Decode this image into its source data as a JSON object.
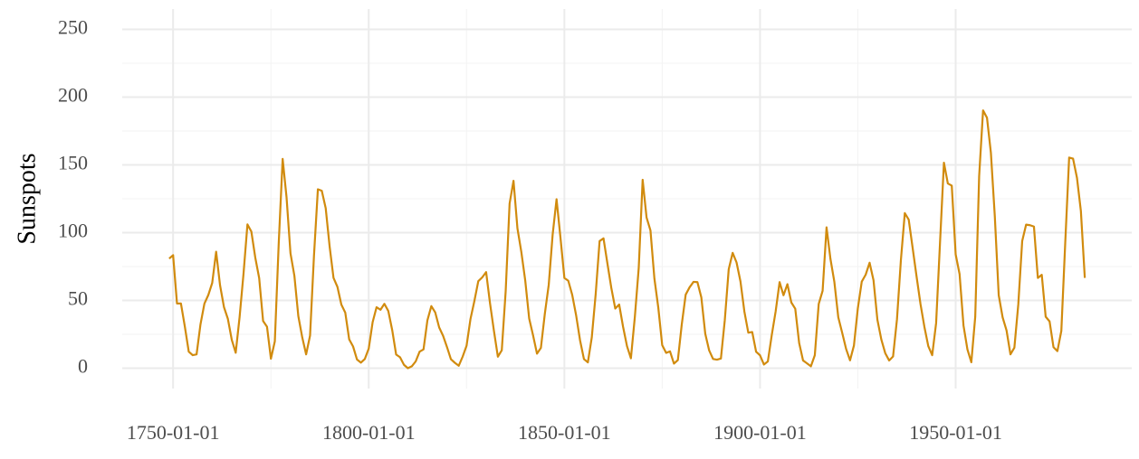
{
  "chart_data": {
    "type": "line",
    "y_label": "Sunspots",
    "x": [
      "1749-01-01",
      "1750-01-01",
      "1751-01-01",
      "1752-01-01",
      "1753-01-01",
      "1754-01-01",
      "1755-01-01",
      "1756-01-01",
      "1757-01-01",
      "1758-01-01",
      "1759-01-01",
      "1760-01-01",
      "1761-01-01",
      "1762-01-01",
      "1763-01-01",
      "1764-01-01",
      "1765-01-01",
      "1766-01-01",
      "1767-01-01",
      "1768-01-01",
      "1769-01-01",
      "1770-01-01",
      "1771-01-01",
      "1772-01-01",
      "1773-01-01",
      "1774-01-01",
      "1775-01-01",
      "1776-01-01",
      "1777-01-01",
      "1778-01-01",
      "1779-01-01",
      "1780-01-01",
      "1781-01-01",
      "1782-01-01",
      "1783-01-01",
      "1784-01-01",
      "1785-01-01",
      "1786-01-01",
      "1787-01-01",
      "1788-01-01",
      "1789-01-01",
      "1790-01-01",
      "1791-01-01",
      "1792-01-01",
      "1793-01-01",
      "1794-01-01",
      "1795-01-01",
      "1796-01-01",
      "1797-01-01",
      "1798-01-01",
      "1799-01-01",
      "1800-01-01",
      "1801-01-01",
      "1802-01-01",
      "1803-01-01",
      "1804-01-01",
      "1805-01-01",
      "1806-01-01",
      "1807-01-01",
      "1808-01-01",
      "1809-01-01",
      "1810-01-01",
      "1811-01-01",
      "1812-01-01",
      "1813-01-01",
      "1814-01-01",
      "1815-01-01",
      "1816-01-01",
      "1817-01-01",
      "1818-01-01",
      "1819-01-01",
      "1820-01-01",
      "1821-01-01",
      "1822-01-01",
      "1823-01-01",
      "1824-01-01",
      "1825-01-01",
      "1826-01-01",
      "1827-01-01",
      "1828-01-01",
      "1829-01-01",
      "1830-01-01",
      "1831-01-01",
      "1832-01-01",
      "1833-01-01",
      "1834-01-01",
      "1835-01-01",
      "1836-01-01",
      "1837-01-01",
      "1838-01-01",
      "1839-01-01",
      "1840-01-01",
      "1841-01-01",
      "1842-01-01",
      "1843-01-01",
      "1844-01-01",
      "1845-01-01",
      "1846-01-01",
      "1847-01-01",
      "1848-01-01",
      "1849-01-01",
      "1850-01-01",
      "1851-01-01",
      "1852-01-01",
      "1853-01-01",
      "1854-01-01",
      "1855-01-01",
      "1856-01-01",
      "1857-01-01",
      "1858-01-01",
      "1859-01-01",
      "1860-01-01",
      "1861-01-01",
      "1862-01-01",
      "1863-01-01",
      "1864-01-01",
      "1865-01-01",
      "1866-01-01",
      "1867-01-01",
      "1868-01-01",
      "1869-01-01",
      "1870-01-01",
      "1871-01-01",
      "1872-01-01",
      "1873-01-01",
      "1874-01-01",
      "1875-01-01",
      "1876-01-01",
      "1877-01-01",
      "1878-01-01",
      "1879-01-01",
      "1880-01-01",
      "1881-01-01",
      "1882-01-01",
      "1883-01-01",
      "1884-01-01",
      "1885-01-01",
      "1886-01-01",
      "1887-01-01",
      "1888-01-01",
      "1889-01-01",
      "1890-01-01",
      "1891-01-01",
      "1892-01-01",
      "1893-01-01",
      "1894-01-01",
      "1895-01-01",
      "1896-01-01",
      "1897-01-01",
      "1898-01-01",
      "1899-01-01",
      "1900-01-01",
      "1901-01-01",
      "1902-01-01",
      "1903-01-01",
      "1904-01-01",
      "1905-01-01",
      "1906-01-01",
      "1907-01-01",
      "1908-01-01",
      "1909-01-01",
      "1910-01-01",
      "1911-01-01",
      "1912-01-01",
      "1913-01-01",
      "1914-01-01",
      "1915-01-01",
      "1916-01-01",
      "1917-01-01",
      "1918-01-01",
      "1919-01-01",
      "1920-01-01",
      "1921-01-01",
      "1922-01-01",
      "1923-01-01",
      "1924-01-01",
      "1925-01-01",
      "1926-01-01",
      "1927-01-01",
      "1928-01-01",
      "1929-01-01",
      "1930-01-01",
      "1931-01-01",
      "1932-01-01",
      "1933-01-01",
      "1934-01-01",
      "1935-01-01",
      "1936-01-01",
      "1937-01-01",
      "1938-01-01",
      "1939-01-01",
      "1940-01-01",
      "1941-01-01",
      "1942-01-01",
      "1943-01-01",
      "1944-01-01",
      "1945-01-01",
      "1946-01-01",
      "1947-01-01",
      "1948-01-01",
      "1949-01-01",
      "1950-01-01",
      "1951-01-01",
      "1952-01-01",
      "1953-01-01",
      "1954-01-01",
      "1955-01-01",
      "1956-01-01",
      "1957-01-01",
      "1958-01-01",
      "1959-01-01",
      "1960-01-01",
      "1961-01-01",
      "1962-01-01",
      "1963-01-01",
      "1964-01-01",
      "1965-01-01",
      "1966-01-01",
      "1967-01-01",
      "1968-01-01",
      "1969-01-01",
      "1970-01-01",
      "1971-01-01",
      "1972-01-01",
      "1973-01-01",
      "1974-01-01",
      "1975-01-01",
      "1976-01-01",
      "1977-01-01",
      "1978-01-01",
      "1979-01-01",
      "1980-01-01",
      "1981-01-01",
      "1982-01-01",
      "1983-01-01"
    ],
    "series": [
      {
        "name": "Sunspots",
        "color": "#d18b0e",
        "values": [
          80.9,
          83.4,
          47.7,
          47.8,
          30.7,
          12.2,
          9.6,
          10.2,
          32.4,
          47.6,
          54.0,
          62.9,
          85.9,
          61.2,
          45.1,
          36.4,
          20.9,
          11.4,
          37.8,
          69.8,
          106.1,
          100.8,
          81.6,
          66.5,
          34.8,
          30.6,
          7.0,
          19.8,
          92.5,
          154.4,
          125.9,
          84.8,
          68.1,
          38.5,
          22.8,
          10.2,
          24.1,
          82.9,
          132.0,
          130.9,
          118.1,
          89.9,
          66.6,
          60.0,
          46.9,
          41.0,
          21.3,
          16.0,
          6.4,
          4.1,
          6.8,
          14.5,
          34.0,
          45.0,
          43.1,
          47.5,
          42.2,
          28.1,
          10.1,
          8.1,
          2.5,
          0.0,
          1.4,
          5.0,
          12.2,
          13.9,
          35.4,
          45.8,
          41.1,
          30.1,
          23.9,
          15.6,
          6.6,
          4.0,
          1.8,
          8.5,
          16.6,
          36.3,
          49.6,
          64.2,
          67.0,
          70.9,
          47.8,
          27.5,
          8.5,
          13.2,
          56.9,
          121.5,
          138.3,
          103.2,
          85.7,
          64.6,
          36.7,
          24.2,
          10.7,
          15.0,
          40.1,
          61.5,
          98.5,
          124.7,
          96.3,
          66.6,
          64.5,
          54.1,
          39.0,
          20.6,
          6.7,
          4.3,
          22.7,
          54.8,
          93.8,
          95.8,
          77.2,
          59.1,
          44.0,
          47.0,
          30.5,
          16.3,
          7.3,
          37.6,
          74.0,
          139.0,
          111.2,
          101.6,
          66.2,
          44.7,
          17.0,
          11.3,
          12.4,
          3.4,
          6.0,
          32.3,
          54.3,
          59.7,
          63.7,
          63.5,
          52.2,
          25.4,
          13.1,
          6.8,
          6.3,
          7.1,
          35.6,
          73.0,
          85.1,
          78.0,
          64.0,
          41.8,
          26.2,
          26.7,
          12.1,
          9.5,
          2.7,
          5.0,
          24.4,
          42.0,
          63.5,
          53.8,
          62.0,
          48.5,
          43.9,
          18.6,
          5.7,
          3.6,
          1.4,
          9.6,
          47.4,
          57.1,
          103.9,
          80.6,
          63.6,
          37.6,
          26.1,
          14.2,
          5.8,
          16.7,
          44.3,
          63.9,
          69.0,
          77.8,
          64.9,
          35.7,
          21.2,
          11.1,
          5.7,
          8.7,
          36.1,
          79.7,
          114.4,
          109.6,
          88.8,
          67.8,
          47.5,
          30.6,
          16.3,
          9.6,
          33.2,
          92.6,
          151.6,
          136.3,
          134.7,
          83.9,
          69.4,
          31.5,
          13.9,
          4.4,
          38.0,
          141.7,
          190.2,
          184.8,
          159.0,
          112.3,
          53.9,
          37.5,
          27.9,
          10.2,
          15.1,
          47.0,
          93.8,
          105.9,
          105.5,
          104.5,
          66.6,
          68.9,
          38.0,
          34.5,
          15.5,
          12.6,
          27.5,
          92.5,
          155.4,
          154.6,
          140.4,
          115.9,
          66.6
        ]
      }
    ],
    "xlim": [
      "1737-01-01",
      "1995-01-01"
    ],
    "xticks": [
      "1750-01-01",
      "1800-01-01",
      "1850-01-01",
      "1900-01-01",
      "1950-01-01"
    ],
    "ylim": [
      -15,
      265
    ],
    "yticks": [
      0,
      50,
      100,
      150,
      200,
      250
    ],
    "grid": true
  }
}
